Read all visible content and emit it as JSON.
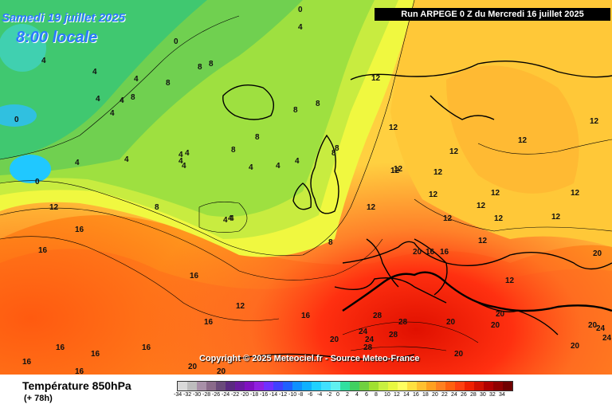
{
  "header": {
    "date": "Samedi 19 juillet 2025",
    "local_time": "8:00 locale",
    "run_info": "Run ARPEGE 0 Z du Mercredi 16 juillet 2025"
  },
  "copyright": "Copyright © 2025 Meteociel.fr - Source Meteo-France",
  "footer": {
    "title": "Température 850hPa",
    "lead_time": "(+ 78h)"
  },
  "legend": {
    "values": [
      "-34",
      "-32",
      "-30",
      "-28",
      "-26",
      "-24",
      "-22",
      "-20",
      "-18",
      "-16",
      "-14",
      "-12",
      "-10",
      "-8",
      "-6",
      "-4",
      "-2",
      "0",
      "2",
      "4",
      "6",
      "8",
      "10",
      "12",
      "14",
      "16",
      "18",
      "20",
      "22",
      "24",
      "26",
      "28",
      "30",
      "32",
      "34"
    ],
    "colors": [
      "#d9d9d9",
      "#bdbdbd",
      "#a890a8",
      "#8a6a8a",
      "#6a4a7a",
      "#5a2a80",
      "#6a1aa0",
      "#8010c0",
      "#9020e0",
      "#7030ff",
      "#4040ff",
      "#2060ff",
      "#1090ff",
      "#10b0ff",
      "#20d0ff",
      "#40e0ff",
      "#60f0f0",
      "#30e0a0",
      "#40d060",
      "#70d040",
      "#a0e030",
      "#c8f040",
      "#e8f840",
      "#ffff60",
      "#ffe040",
      "#ffc030",
      "#ffa020",
      "#ff8020",
      "#ff6010",
      "#ff4010",
      "#f02000",
      "#d01000",
      "#b00000",
      "#900000",
      "#700000"
    ]
  },
  "labels": [
    {
      "t": "0"
    },
    {
      "t": "4"
    },
    {
      "t": "0"
    },
    {
      "t": "4"
    },
    {
      "t": "4"
    },
    {
      "t": "8"
    },
    {
      "t": "8"
    },
    {
      "t": "4"
    },
    {
      "t": "4"
    },
    {
      "t": "4"
    },
    {
      "t": "8"
    },
    {
      "t": "4"
    },
    {
      "t": "8"
    },
    {
      "t": "4"
    },
    {
      "t": "0"
    },
    {
      "t": "4"
    },
    {
      "t": "4"
    },
    {
      "t": "0"
    },
    {
      "t": "8"
    },
    {
      "t": "8"
    },
    {
      "t": "8"
    },
    {
      "t": "4"
    },
    {
      "t": "4"
    },
    {
      "t": "8"
    },
    {
      "t": "8"
    },
    {
      "t": "4"
    },
    {
      "t": "4"
    },
    {
      "t": "4"
    },
    {
      "t": "4"
    },
    {
      "t": "8"
    },
    {
      "t": "8"
    },
    {
      "t": "4"
    },
    {
      "t": "12"
    },
    {
      "t": "12"
    },
    {
      "t": "12"
    },
    {
      "t": "12"
    },
    {
      "t": "12"
    },
    {
      "t": "12"
    },
    {
      "t": "12"
    },
    {
      "t": "12"
    },
    {
      "t": "12"
    },
    {
      "t": "12"
    },
    {
      "t": "12"
    },
    {
      "t": "12"
    },
    {
      "t": "12"
    },
    {
      "t": "12"
    },
    {
      "t": "12"
    },
    {
      "t": "12"
    },
    {
      "t": "12"
    },
    {
      "t": "12"
    },
    {
      "t": "16"
    },
    {
      "t": "16"
    },
    {
      "t": "16"
    },
    {
      "t": "16"
    },
    {
      "t": "16"
    },
    {
      "t": "16"
    },
    {
      "t": "16"
    },
    {
      "t": "16"
    },
    {
      "t": "16"
    },
    {
      "t": "16"
    },
    {
      "t": "20"
    },
    {
      "t": "20"
    },
    {
      "t": "20"
    },
    {
      "t": "20"
    },
    {
      "t": "20"
    },
    {
      "t": "20"
    },
    {
      "t": "20"
    },
    {
      "t": "20"
    },
    {
      "t": "20"
    },
    {
      "t": "20"
    },
    {
      "t": "24"
    },
    {
      "t": "24"
    },
    {
      "t": "24"
    },
    {
      "t": "24"
    },
    {
      "t": "28"
    },
    {
      "t": "28"
    },
    {
      "t": "28"
    },
    {
      "t": "28"
    },
    {
      "t": "16"
    },
    {
      "t": "16"
    },
    {
      "t": "12"
    },
    {
      "t": "20"
    },
    {
      "t": "12"
    },
    {
      "t": "8"
    },
    {
      "t": "4"
    },
    {
      "t": "4"
    }
  ]
}
